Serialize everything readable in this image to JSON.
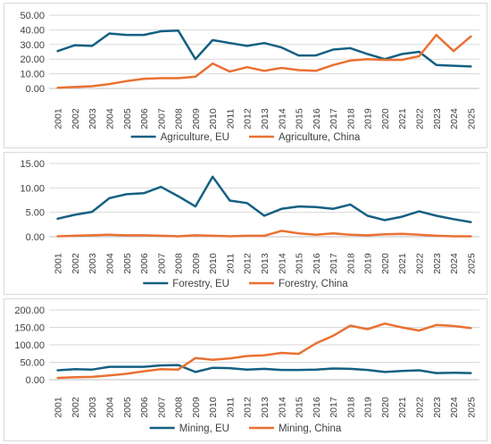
{
  "colors": {
    "eu": "#156082",
    "china": "#e97132"
  },
  "chart_data": [
    {
      "type": "line",
      "x": [
        "2001",
        "2002",
        "2003",
        "2004",
        "2005",
        "2006",
        "2007",
        "2008",
        "2009",
        "2010",
        "2011",
        "2012",
        "2013",
        "2014",
        "2015",
        "2016",
        "2017",
        "2018",
        "2019",
        "2020",
        "2021",
        "2022",
        "2023",
        "2024",
        "2025"
      ],
      "series": [
        {
          "name": "Agriculture, EU",
          "values": [
            25.5,
            29.5,
            29,
            37.5,
            36.5,
            36.5,
            39,
            39.5,
            20,
            33,
            31,
            29,
            31,
            28,
            22.5,
            22.5,
            26.5,
            27.5,
            23.5,
            20,
            23.5,
            25,
            16,
            15.5,
            15
          ]
        },
        {
          "name": "Agriculture, China",
          "values": [
            0.5,
            1,
            1.5,
            3,
            5,
            6.5,
            7,
            7,
            8,
            17,
            11.5,
            14.5,
            12,
            14,
            12.5,
            12,
            16,
            19,
            20,
            19.5,
            19.5,
            22,
            36.5,
            25.5,
            35.5
          ]
        }
      ],
      "yticks": [
        "0.00",
        "10.00",
        "20.00",
        "30.00",
        "40.00",
        "50.00"
      ],
      "ylim": [
        0,
        50
      ],
      "grid": true,
      "legend": "bottom"
    },
    {
      "type": "line",
      "x": [
        "2001",
        "2002",
        "2003",
        "2004",
        "2005",
        "2006",
        "2007",
        "2008",
        "2009",
        "2010",
        "2011",
        "2012",
        "2013",
        "2014",
        "2015",
        "2016",
        "2017",
        "2018",
        "2019",
        "2020",
        "2021",
        "2022",
        "2023",
        "2024",
        "2025"
      ],
      "series": [
        {
          "name": "Forestry, EU",
          "values": [
            3.7,
            4.5,
            5.1,
            7.9,
            8.7,
            8.9,
            10.2,
            8.3,
            6.2,
            12.3,
            7.4,
            6.9,
            4.3,
            5.7,
            6.2,
            6.1,
            5.7,
            6.6,
            4.3,
            3.4,
            4.1,
            5.2,
            4.3,
            3.6,
            3.0
          ]
        },
        {
          "name": "Forestry, China",
          "values": [
            0.1,
            0.2,
            0.3,
            0.4,
            0.3,
            0.3,
            0.2,
            0.1,
            0.3,
            0.2,
            0.1,
            0.2,
            0.2,
            1.2,
            0.7,
            0.4,
            0.7,
            0.4,
            0.3,
            0.5,
            0.6,
            0.4,
            0.2,
            0.1,
            0.1
          ]
        }
      ],
      "yticks": [
        "0.00",
        "5.00",
        "10.00",
        "15.00"
      ],
      "ylim": [
        0,
        15
      ],
      "grid": true,
      "legend": "bottom"
    },
    {
      "type": "line",
      "x": [
        "2001",
        "2002",
        "2003",
        "2004",
        "2005",
        "2006",
        "2007",
        "2008",
        "2009",
        "2010",
        "2011",
        "2012",
        "2013",
        "2014",
        "2015",
        "2016",
        "2017",
        "2018",
        "2019",
        "2020",
        "2021",
        "2022",
        "2023",
        "2024",
        "2025"
      ],
      "series": [
        {
          "name": "Mining, EU",
          "values": [
            27,
            30,
            29,
            37,
            37,
            37,
            41,
            42,
            22,
            34,
            33,
            29,
            31,
            28,
            28,
            29,
            32,
            31,
            28,
            22,
            25,
            27,
            19,
            20,
            19
          ]
        },
        {
          "name": "Mining, China",
          "values": [
            5,
            7,
            8,
            12,
            17,
            24,
            30,
            29,
            62,
            57,
            61,
            68,
            70,
            77,
            74,
            104,
            126,
            155,
            145,
            161,
            150,
            141,
            157,
            154,
            148
          ]
        }
      ],
      "yticks": [
        "0.00",
        "50.00",
        "100.00",
        "150.00",
        "200.00"
      ],
      "ylim": [
        0,
        200
      ],
      "grid": true,
      "legend": "bottom"
    }
  ]
}
